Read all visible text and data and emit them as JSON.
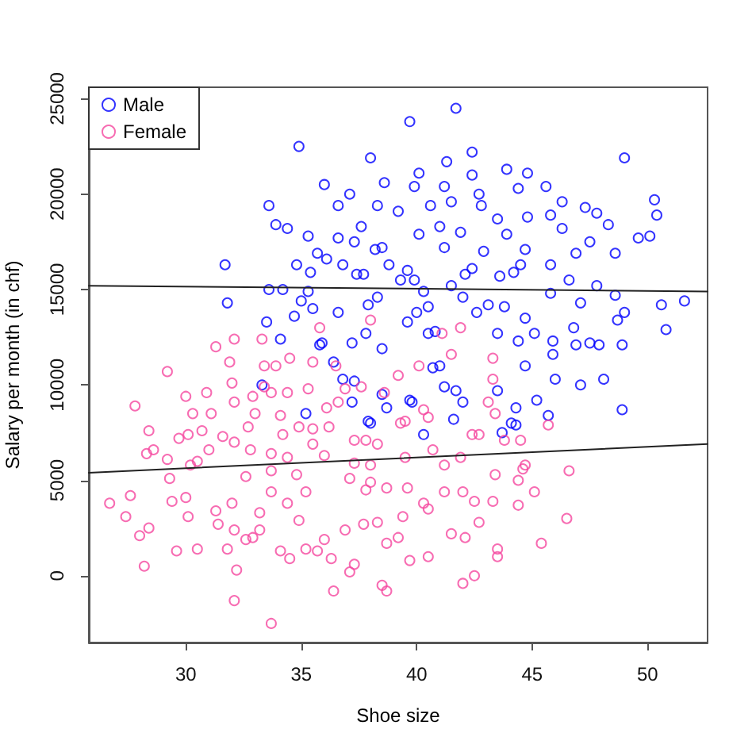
{
  "chart_data": {
    "type": "scatter",
    "xlabel": "Shoe size",
    "ylabel": "Salary per month (in chf)",
    "xlim": [
      25.8,
      52.6
    ],
    "xticks": [
      30,
      35,
      40,
      45,
      50
    ],
    "ylim": [
      -3500,
      25600
    ],
    "yticks": [
      0,
      5000,
      10000,
      15000,
      20000,
      25000
    ],
    "legend": "top left",
    "marker": "circle",
    "series": [
      {
        "name": "Male",
        "color": "#0000ff",
        "x": [
          34.9,
          38.0,
          36.0,
          33.6,
          33.9,
          34.4,
          37.1,
          36.6,
          35.3,
          35.7,
          36.1,
          34.8,
          31.7,
          33.6,
          34.2,
          31.8,
          33.5,
          34.1,
          35.3,
          35.0,
          34.7,
          35.5,
          35.9,
          36.6,
          37.3,
          37.6,
          36.8,
          37.7,
          38.2,
          38.3,
          36.6,
          37.2,
          37.8,
          41.7,
          39.7,
          42.4,
          49.0,
          41.3,
          40.1,
          42.4,
          43.9,
          44.8,
          38.6,
          39.9,
          41.2,
          42.7,
          44.4,
          45.6,
          46.3,
          47.3,
          47.8,
          50.3,
          50.4,
          48.3,
          50.1,
          49.6,
          48.6,
          47.5,
          46.9,
          47.8,
          48.6,
          51.6,
          50.6,
          50.8,
          49.0,
          48.7,
          47.1,
          47.5,
          48.9,
          46.8,
          45.8,
          39.2,
          40.6,
          41.5,
          42.8,
          43.5,
          44.8,
          45.8,
          46.3,
          40.1,
          41.9,
          43.9,
          42.9,
          44.5,
          45.8,
          46.6,
          38.5,
          41.2,
          38.8,
          42.4,
          43.6,
          41.5,
          39.9,
          43.1,
          44.7,
          45.1,
          43.5,
          40.8,
          39.6,
          38.3,
          40.5,
          42.0,
          45.9,
          44.4,
          47.9,
          46.9,
          48.1,
          47.1,
          46.0,
          48.9,
          45.7,
          45.2,
          44.3,
          44.3,
          43.7,
          43.5,
          41.7,
          42.0,
          41.6,
          40.3,
          39.8,
          38.7,
          38.0,
          40.7,
          44.7,
          45.9,
          33.3,
          35.8,
          36.4,
          36.8,
          35.2,
          37.2,
          35.4,
          37.4,
          37.9,
          39.3,
          40.0,
          38.5,
          37.3,
          38.5,
          37.9,
          39.7,
          40.5,
          41.2,
          41.0,
          42.1,
          42.6,
          43.8,
          44.2,
          44.7,
          39.6,
          40.3,
          41.0,
          44.1
        ],
        "values": [
          22500,
          21900,
          20500,
          19400,
          18400,
          18200,
          20000,
          19400,
          17800,
          16900,
          16600,
          16300,
          16300,
          15000,
          15000,
          14300,
          13300,
          12400,
          14900,
          14400,
          13600,
          14000,
          12200,
          17700,
          17500,
          18300,
          16300,
          15800,
          17100,
          19400,
          13800,
          12200,
          12700,
          24500,
          23800,
          22200,
          21900,
          21700,
          21100,
          21000,
          21300,
          21100,
          20600,
          20400,
          20400,
          20000,
          20300,
          20400,
          19600,
          19300,
          19000,
          19700,
          18900,
          18400,
          17800,
          17700,
          16900,
          17500,
          16900,
          15200,
          14700,
          14400,
          14200,
          12900,
          13800,
          13400,
          14300,
          12200,
          12100,
          13000,
          14800,
          19100,
          19400,
          19600,
          19400,
          18700,
          18800,
          18900,
          18200,
          17900,
          18000,
          17900,
          17000,
          16300,
          16300,
          15500,
          17200,
          17200,
          16300,
          16100,
          15700,
          15200,
          15500,
          14200,
          13500,
          12700,
          12700,
          12800,
          13300,
          14600,
          14100,
          14600,
          12300,
          12300,
          12100,
          12100,
          10300,
          10000,
          10300,
          8700,
          8400,
          9200,
          8800,
          7900,
          7500,
          9700,
          9700,
          9100,
          8200,
          7400,
          9100,
          8800,
          8000,
          10900,
          11000,
          11600,
          10000,
          12100,
          11200,
          10300,
          8500,
          9100,
          15900,
          15800,
          14200,
          15500,
          13800,
          11900,
          10200,
          9500,
          8100,
          9200,
          12700,
          9900,
          18300,
          15800,
          13800,
          14100,
          15900,
          17100,
          16000,
          14900,
          11000,
          8000
        ]
      },
      {
        "name": "Female",
        "color": "#f5479f",
        "x": [
          26.7,
          27.4,
          28.0,
          28.2,
          28.4,
          27.6,
          27.8,
          28.4,
          28.3,
          28.6,
          29.2,
          29.2,
          29.3,
          29.4,
          29.6,
          29.7,
          30.0,
          30.1,
          30.0,
          30.1,
          30.5,
          30.3,
          30.2,
          30.5,
          30.7,
          30.9,
          31.0,
          31.3,
          31.1,
          31.3,
          31.4,
          31.6,
          32.1,
          31.9,
          32.0,
          32.1,
          32.1,
          32.0,
          32.1,
          32.1,
          31.8,
          32.2,
          32.6,
          32.8,
          32.7,
          33.0,
          32.9,
          32.6,
          32.9,
          33.2,
          33.2,
          33.3,
          33.4,
          33.9,
          33.4,
          33.7,
          33.7,
          33.7,
          33.7,
          34.1,
          33.7,
          34.5,
          34.1,
          34.2,
          34.4,
          34.4,
          34.4,
          34.9,
          34.8,
          34.9,
          35.2,
          35.2,
          35.3,
          35.5,
          35.7,
          36.0,
          36.4,
          36.3,
          36.2,
          36.6,
          37.1,
          37.3,
          36.9,
          37.7,
          37.8,
          37.1,
          38.0,
          37.8,
          37.6,
          36.5,
          34.5,
          45.7,
          44.5,
          43.3,
          43.4,
          43.1,
          42.7,
          41.9,
          46.6,
          44.6,
          43.4,
          44.4,
          45.1,
          44.4,
          43.3,
          42.5,
          42.0,
          46.5,
          45.4,
          43.5,
          43.5,
          42.7,
          42.1,
          41.5,
          40.5,
          39.7,
          38.5,
          38.7,
          42.0,
          42.5,
          38.7,
          39.2,
          41.2,
          40.5,
          39.4,
          38.3,
          41.2,
          40.3,
          39.6,
          38.7,
          38.0,
          40.7,
          39.5,
          38.3,
          40.5,
          39.5,
          38.6,
          40.1,
          39.2,
          41.5,
          43.3,
          35.8,
          38.0,
          35.5,
          36.1,
          36.9,
          35.5,
          37.3,
          39.3,
          40.3,
          41.1,
          41.9,
          42.4,
          37.3,
          36.0,
          43.8,
          44.7
        ],
        "values": [
          3800,
          3100,
          2100,
          500,
          2500,
          4200,
          8900,
          7600,
          6400,
          6600,
          6100,
          10700,
          5100,
          3900,
          1300,
          7200,
          9400,
          7400,
          4100,
          3100,
          1400,
          8500,
          5800,
          6000,
          7600,
          9600,
          6600,
          12000,
          8500,
          3400,
          2700,
          7300,
          12400,
          11200,
          10100,
          9100,
          7000,
          3800,
          2400,
          -1300,
          1400,
          300,
          5200,
          6600,
          7800,
          8500,
          9400,
          1900,
          2000,
          3300,
          2400,
          12400,
          11000,
          11000,
          9900,
          9600,
          6400,
          5500,
          4400,
          1300,
          -2500,
          900,
          8400,
          7400,
          6200,
          3800,
          9600,
          7800,
          5300,
          2900,
          4400,
          1400,
          9800,
          6900,
          1300,
          1900,
          -800,
          900,
          7800,
          9100,
          200,
          600,
          2400,
          2700,
          4500,
          5100,
          5800,
          7100,
          9900,
          11000,
          11400,
          7900,
          7100,
          10300,
          8500,
          9100,
          7400,
          6200,
          5500,
          5600,
          5300,
          5000,
          4400,
          3700,
          3900,
          3900,
          4400,
          3000,
          1700,
          1400,
          1000,
          2800,
          2000,
          2200,
          1000,
          800,
          -500,
          -800,
          -400,
          0,
          1700,
          2000,
          4400,
          3500,
          3100,
          2800,
          5800,
          3800,
          4600,
          4600,
          4900,
          6600,
          6200,
          6900,
          8300,
          8100,
          9600,
          11000,
          10500,
          11600,
          11400,
          13000,
          13400,
          11200,
          8800,
          9800,
          7700,
          7100,
          8000,
          8700,
          12700,
          13000,
          7400,
          5900,
          6300,
          7100,
          5800
        ]
      },
      {
        "type": "line",
        "color": "#222222",
        "marker": "none",
        "x": [
          25.8,
          52.6
        ],
        "values": [
          15200,
          14900
        ]
      },
      {
        "type": "line",
        "color": "#222222",
        "marker": "none",
        "x": [
          25.8,
          52.6
        ],
        "values": [
          5400,
          6900
        ]
      }
    ]
  }
}
